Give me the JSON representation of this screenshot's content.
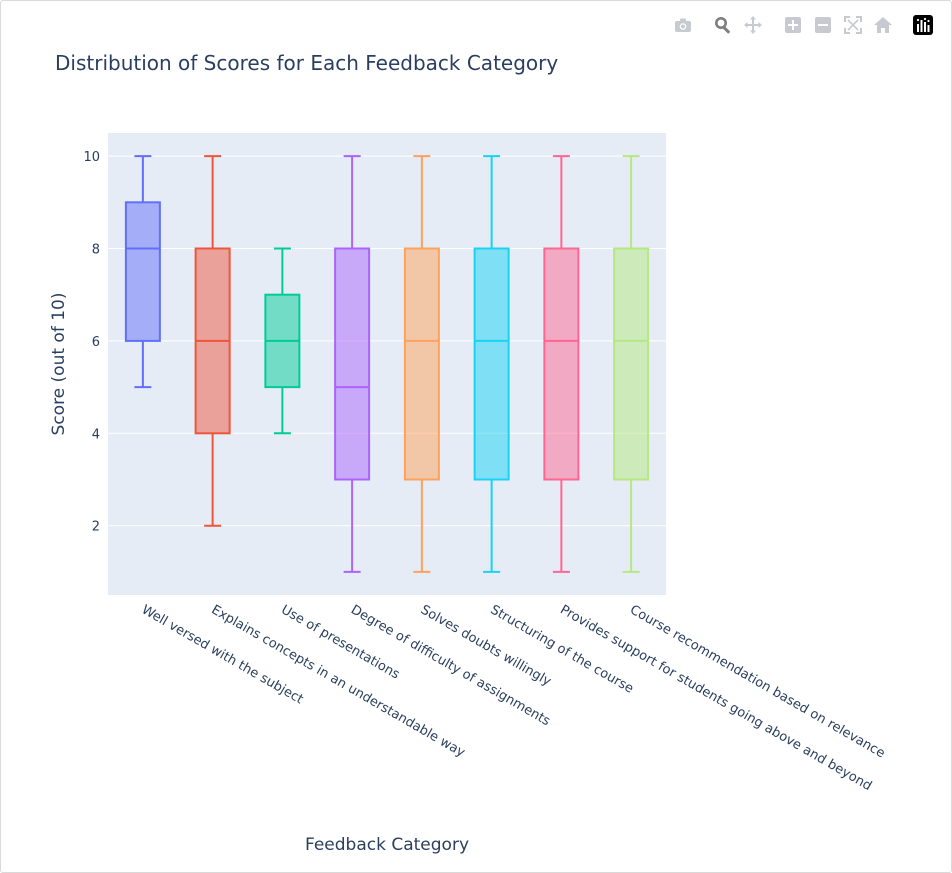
{
  "modebar": {
    "buttons": [
      {
        "name": "camera-icon",
        "label": "Download plot as a png"
      },
      {
        "name": "zoom-icon",
        "label": "Zoom"
      },
      {
        "name": "pan-icon",
        "label": "Pan"
      },
      {
        "name": "zoom-in-icon",
        "label": "Zoom in"
      },
      {
        "name": "zoom-out-icon",
        "label": "Zoom out"
      },
      {
        "name": "autoscale-icon",
        "label": "Autoscale"
      },
      {
        "name": "home-icon",
        "label": "Reset axes"
      },
      {
        "name": "plotly-logo-icon",
        "label": "Produced with Plotly"
      }
    ]
  },
  "chart_data": {
    "type": "box",
    "title": "Distribution of Scores for Each Feedback Category",
    "xlabel": "Feedback Category",
    "ylabel": "Score (out of 10)",
    "ylim": [
      0.5,
      10.5
    ],
    "yticks": [
      2,
      4,
      6,
      8,
      10
    ],
    "grid": true,
    "legend": "none",
    "categories": [
      "Well versed with the subject",
      "Explains concepts in an understandable way",
      "Use of presentations",
      "Degree of difficulty of assignments",
      "Solves doubts willingly",
      "Structuring of the course",
      "Provides support for students going above and beyond",
      "Course recommendation based on relevance"
    ],
    "boxes": [
      {
        "min": 5,
        "q1": 6,
        "median": 8,
        "q3": 9,
        "max": 10,
        "color": "#636efa"
      },
      {
        "min": 2,
        "q1": 4,
        "median": 6,
        "q3": 8,
        "max": 10,
        "color": "#ef553b"
      },
      {
        "min": 4,
        "q1": 5,
        "median": 6,
        "q3": 7,
        "max": 8,
        "color": "#00cc96"
      },
      {
        "min": 1,
        "q1": 3,
        "median": 5,
        "q3": 8,
        "max": 10,
        "color": "#ab63fa"
      },
      {
        "min": 1,
        "q1": 3,
        "median": 6,
        "q3": 8,
        "max": 10,
        "color": "#ffa15a"
      },
      {
        "min": 1,
        "q1": 3,
        "median": 6,
        "q3": 8,
        "max": 10,
        "color": "#19d3f3"
      },
      {
        "min": 1,
        "q1": 3,
        "median": 6,
        "q3": 8,
        "max": 10,
        "color": "#ff6692"
      },
      {
        "min": 1,
        "q1": 3,
        "median": 6,
        "q3": 8,
        "max": 10,
        "color": "#b6e880"
      }
    ]
  }
}
